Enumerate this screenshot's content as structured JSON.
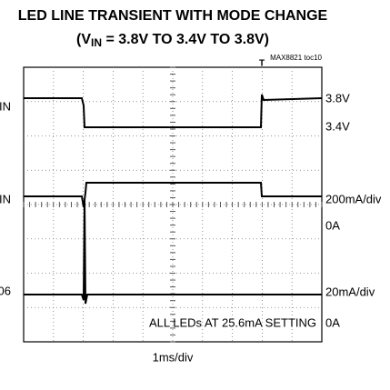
{
  "header": {
    "title": "LED LINE TRANSIENT WITH MODE CHANGE",
    "subtitle_prefix": "(V",
    "subtitle_sub": "IN",
    "subtitle_rest": " = 3.8V TO 3.4V TO 3.8V)",
    "tag": "MAX8821 toc10"
  },
  "left_labels": [
    "IN",
    "IN",
    "06"
  ],
  "right_labels": [
    "3.8V",
    "3.4V",
    "200mA/div",
    "0A",
    "20mA/div",
    "0A"
  ],
  "trigger": "T",
  "annotation": "ALL LEDs AT 25.6mA SETTING",
  "x_scale": "1ms/div"
}
